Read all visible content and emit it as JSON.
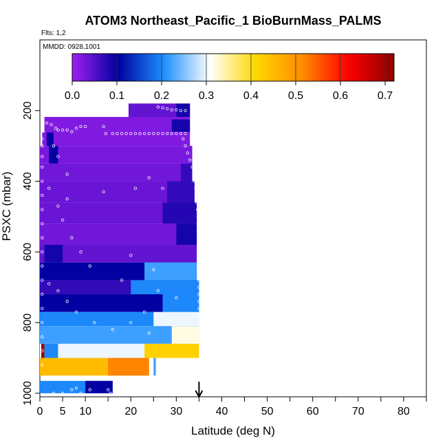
{
  "chart_data": {
    "type": "heatmap",
    "title": "ATOM3 Northeast_Pacific_1 BioBurnMass_PALMS",
    "flights_note": "Flts: 1,2",
    "date_note": "MMDD: 0928,1001",
    "xlabel": "Latitude (deg N)",
    "ylabel": "PSXC (mbar)",
    "xlim": [
      0,
      85
    ],
    "ylim": [
      1010,
      0
    ],
    "x_ticks": [
      "0",
      "5",
      "10",
      "20",
      "30",
      "40",
      "50",
      "60",
      "70",
      "80"
    ],
    "x_tick_values": [
      0,
      5,
      10,
      20,
      30,
      40,
      50,
      60,
      70,
      80
    ],
    "x_minor_ticks": [
      15,
      25,
      35,
      45,
      55,
      65,
      75,
      85
    ],
    "y_ticks": [
      "200",
      "400",
      "600",
      "800",
      "1000"
    ],
    "y_tick_values": [
      200,
      400,
      600,
      800,
      1000
    ],
    "colorbar": {
      "min": 0.0,
      "max": 0.72,
      "ticks": [
        "0.0",
        "0.1",
        "0.2",
        "0.3",
        "0.4",
        "0.5",
        "0.6",
        "0.7"
      ],
      "tick_values": [
        0,
        0.1,
        0.2,
        0.3,
        0.4,
        0.5,
        0.6,
        0.7
      ],
      "colors": [
        "#a020f0",
        "#0000a0",
        "#1e90ff",
        "#ffffff",
        "#ffd700",
        "#ff8c00",
        "#ff0000",
        "#8b0000"
      ]
    },
    "marker": {
      "latitude": 35,
      "label": "arrow"
    },
    "bands": [
      {
        "p1": 180,
        "p2": 220,
        "x1": 19.5,
        "x2": 33,
        "v": 0.04
      },
      {
        "p1": 180,
        "p2": 220,
        "x1": 30,
        "x2": 33,
        "v": 0.09
      },
      {
        "p1": 218,
        "p2": 265,
        "x1": 1,
        "x2": 33,
        "v": 0.02
      },
      {
        "p1": 225,
        "p2": 260,
        "x1": 29,
        "x2": 33,
        "v": 0.09
      },
      {
        "p1": 262,
        "p2": 300,
        "x1": 0.5,
        "x2": 33,
        "v": 0.02
      },
      {
        "p1": 262,
        "p2": 300,
        "x1": 1.5,
        "x2": 3,
        "v": 0.1
      },
      {
        "p1": 300,
        "p2": 350,
        "x1": 0,
        "x2": 33.5,
        "v": 0.025
      },
      {
        "p1": 300,
        "p2": 350,
        "x1": 2,
        "x2": 4,
        "v": 0.1
      },
      {
        "p1": 350,
        "p2": 400,
        "x1": 0,
        "x2": 33.5,
        "v": 0.03
      },
      {
        "p1": 350,
        "p2": 400,
        "x1": 31,
        "x2": 33.5,
        "v": 0.07
      },
      {
        "p1": 400,
        "p2": 460,
        "x1": 0,
        "x2": 34,
        "v": 0.035
      },
      {
        "p1": 400,
        "p2": 460,
        "x1": 28,
        "x2": 34,
        "v": 0.07
      },
      {
        "p1": 460,
        "p2": 520,
        "x1": 0,
        "x2": 34.5,
        "v": 0.035
      },
      {
        "p1": 460,
        "p2": 520,
        "x1": 27,
        "x2": 34.5,
        "v": 0.08
      },
      {
        "p1": 520,
        "p2": 580,
        "x1": 0,
        "x2": 34.5,
        "v": 0.03
      },
      {
        "p1": 520,
        "p2": 580,
        "x1": 30,
        "x2": 34.5,
        "v": 0.09
      },
      {
        "p1": 580,
        "p2": 630,
        "x1": 0,
        "x2": 34.5,
        "v": 0.04
      },
      {
        "p1": 580,
        "p2": 630,
        "x1": 1,
        "x2": 5,
        "v": 0.09
      },
      {
        "p1": 630,
        "p2": 680,
        "x1": 0,
        "x2": 34.5,
        "v": 0.1
      },
      {
        "p1": 630,
        "p2": 680,
        "x1": 23,
        "x2": 34.5,
        "v": 0.22
      },
      {
        "p1": 680,
        "p2": 720,
        "x1": 0,
        "x2": 35,
        "v": 0.07
      },
      {
        "p1": 680,
        "p2": 720,
        "x1": 20,
        "x2": 35,
        "v": 0.2
      },
      {
        "p1": 720,
        "p2": 770,
        "x1": 0,
        "x2": 35,
        "v": 0.1
      },
      {
        "p1": 720,
        "p2": 770,
        "x1": 27,
        "x2": 35,
        "v": 0.2
      },
      {
        "p1": 770,
        "p2": 810,
        "x1": 0,
        "x2": 35,
        "v": 0.2
      },
      {
        "p1": 770,
        "p2": 810,
        "x1": 25,
        "x2": 35,
        "v": 0.3
      },
      {
        "p1": 810,
        "p2": 860,
        "x1": 0,
        "x2": 35,
        "v": 0.22
      },
      {
        "p1": 810,
        "p2": 860,
        "x1": 29,
        "x2": 35,
        "v": 0.32
      },
      {
        "p1": 860,
        "p2": 900,
        "x1": 0,
        "x2": 35,
        "v": 0.3
      },
      {
        "p1": 860,
        "p2": 900,
        "x1": 0.3,
        "x2": 1,
        "v": 0.7
      },
      {
        "p1": 860,
        "p2": 900,
        "x1": 1,
        "x2": 4,
        "v": 0.2
      },
      {
        "p1": 860,
        "p2": 900,
        "x1": 23,
        "x2": 35,
        "v": 0.42
      },
      {
        "p1": 900,
        "p2": 950,
        "x1": 0,
        "x2": 24,
        "v": 0.45
      },
      {
        "p1": 900,
        "p2": 950,
        "x1": 15,
        "x2": 24,
        "v": 0.52
      },
      {
        "p1": 900,
        "p2": 950,
        "x1": 25,
        "x2": 25.5,
        "v": 0.22
      },
      {
        "p1": 965,
        "p2": 1000,
        "x1": 0,
        "x2": 16,
        "v": 0.2
      },
      {
        "p1": 965,
        "p2": 1000,
        "x1": 10,
        "x2": 16,
        "v": 0.1
      }
    ],
    "points": [
      [
        1.5,
        235
      ],
      [
        2.5,
        240
      ],
      [
        3.5,
        250
      ],
      [
        4,
        255
      ],
      [
        5,
        255
      ],
      [
        6,
        255
      ],
      [
        7,
        260
      ],
      [
        8,
        250
      ],
      [
        9,
        245
      ],
      [
        10,
        245
      ],
      [
        14,
        245
      ],
      [
        14.5,
        265
      ],
      [
        16,
        265
      ],
      [
        17,
        265
      ],
      [
        18,
        265
      ],
      [
        19,
        265
      ],
      [
        20,
        265
      ],
      [
        21,
        265
      ],
      [
        22,
        265
      ],
      [
        23,
        265
      ],
      [
        24,
        265
      ],
      [
        25,
        265
      ],
      [
        26,
        265
      ],
      [
        27,
        265
      ],
      [
        28,
        265
      ],
      [
        29,
        265
      ],
      [
        30,
        265
      ],
      [
        31,
        265
      ],
      [
        32,
        265
      ],
      [
        26,
        190
      ],
      [
        27,
        192
      ],
      [
        28,
        195
      ],
      [
        29,
        198
      ],
      [
        30,
        198
      ],
      [
        31,
        200
      ],
      [
        32,
        200
      ],
      [
        31.5,
        280
      ],
      [
        32,
        300
      ],
      [
        32.5,
        320
      ],
      [
        33,
        340
      ],
      [
        33.5,
        360
      ],
      [
        34,
        380
      ],
      [
        34,
        400
      ],
      [
        34.3,
        420
      ],
      [
        34.5,
        440
      ],
      [
        34.5,
        460
      ],
      [
        34.7,
        480
      ],
      [
        34.8,
        500
      ],
      [
        34.8,
        520
      ],
      [
        34.8,
        540
      ],
      [
        34.8,
        560
      ],
      [
        34.9,
        580
      ],
      [
        35,
        600
      ],
      [
        35,
        620
      ],
      [
        35,
        640
      ],
      [
        35,
        660
      ],
      [
        35,
        680
      ],
      [
        35,
        700
      ],
      [
        35,
        720
      ],
      [
        35,
        740
      ],
      [
        35,
        760
      ],
      [
        35,
        780
      ],
      [
        35,
        800
      ],
      [
        35,
        820
      ],
      [
        0.5,
        280
      ],
      [
        0.5,
        300
      ],
      [
        0.5,
        330
      ],
      [
        0.5,
        360
      ],
      [
        0.5,
        400
      ],
      [
        0.5,
        440
      ],
      [
        0.5,
        480
      ],
      [
        0.5,
        520
      ],
      [
        0.5,
        560
      ],
      [
        0.5,
        600
      ],
      [
        0.5,
        640
      ],
      [
        0.5,
        680
      ],
      [
        0.5,
        720
      ],
      [
        0.5,
        760
      ],
      [
        0.5,
        800
      ],
      [
        0.5,
        840
      ],
      [
        0.5,
        880
      ],
      [
        0.5,
        920
      ],
      [
        3,
        300
      ],
      [
        4,
        330
      ],
      [
        6,
        380
      ],
      [
        2,
        420
      ],
      [
        6,
        450
      ],
      [
        4,
        470
      ],
      [
        5,
        510
      ],
      [
        7,
        560
      ],
      [
        9,
        600
      ],
      [
        11,
        640
      ],
      [
        2,
        690
      ],
      [
        4,
        710
      ],
      [
        6,
        740
      ],
      [
        8,
        770
      ],
      [
        12,
        800
      ],
      [
        16,
        820
      ],
      [
        20,
        800
      ],
      [
        24,
        830
      ],
      [
        14,
        430
      ],
      [
        21,
        420
      ],
      [
        24,
        390
      ],
      [
        27,
        420
      ],
      [
        20,
        610
      ],
      [
        25,
        650
      ],
      [
        18,
        680
      ],
      [
        26,
        710
      ],
      [
        30,
        730
      ],
      [
        23,
        770
      ],
      [
        27,
        780
      ],
      [
        31,
        800
      ],
      [
        3,
        1000
      ],
      [
        5,
        1000
      ],
      [
        7,
        990
      ],
      [
        8,
        985
      ],
      [
        9,
        1000
      ],
      [
        11,
        990
      ],
      [
        15,
        990
      ],
      [
        15.5,
        1000
      ]
    ]
  }
}
